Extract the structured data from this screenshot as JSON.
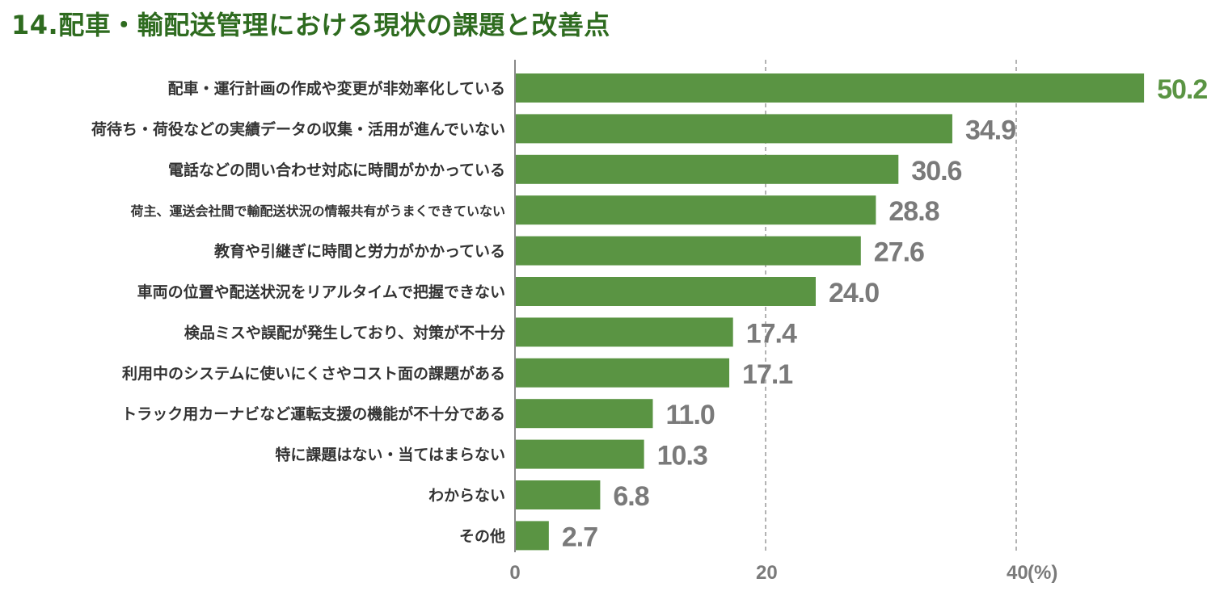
{
  "colors": {
    "bar": "#5a9443",
    "title": "#2e6b1f",
    "value_highlight": "#5a9443",
    "value_default": "#7a7a7a",
    "axis": "#888888",
    "grid": "#9a9a9a"
  },
  "chart_data": {
    "type": "bar",
    "orientation": "horizontal",
    "title": "14.配車・輸配送管理における現状の課題と改善点",
    "unit": "(%)",
    "xlim": [
      0,
      50.2
    ],
    "xticks": [
      "0",
      "20",
      "40"
    ],
    "grid": "vertical-dashed",
    "categories": [
      "配車・運行計画の作成や変更が非効率化している",
      "荷待ち・荷役などの実績データの収集・活用が進んでいない",
      "電話などの問い合わせ対応に時間がかかっている",
      "荷主、運送会社間で輸配送状況の情報共有がうまくできていない",
      "教育や引継ぎに時間と労力がかかっている",
      "車両の位置や配送状況をリアルタイムで把握できない",
      "検品ミスや誤配が発生しており、対策が不十分",
      "利用中のシステムに使いにくさやコスト面の課題がある",
      "トラック用カーナビなど運転支援の機能が不十分である",
      "特に課題はない・当てはまらない",
      "わからない",
      "その他"
    ],
    "values": [
      50.2,
      34.9,
      30.6,
      28.8,
      27.6,
      24.0,
      17.4,
      17.1,
      11.0,
      10.3,
      6.8,
      2.7
    ],
    "value_labels": [
      "50.2",
      "34.9",
      "30.6",
      "28.8",
      "27.6",
      "24.0",
      "17.4",
      "17.1",
      "11.0",
      "10.3",
      "6.8",
      "2.7"
    ]
  }
}
